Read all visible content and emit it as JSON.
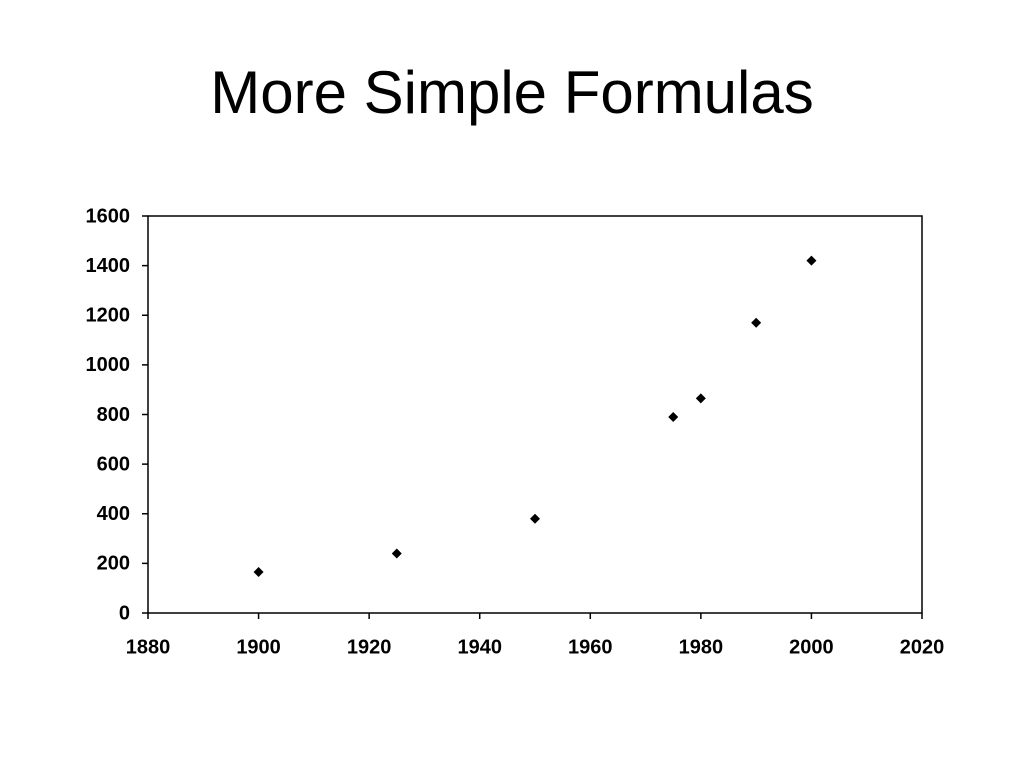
{
  "chart_data": {
    "type": "scatter",
    "title": "More Simple Formulas",
    "x": [
      1900,
      1925,
      1950,
      1975,
      1980,
      1990,
      2000
    ],
    "values": [
      165,
      240,
      380,
      790,
      865,
      1170,
      1420
    ],
    "color": "#000000",
    "xlim": [
      1880,
      2020
    ],
    "xticks": [
      1880,
      1900,
      1920,
      1940,
      1960,
      1980,
      2000,
      2020
    ],
    "ylim": [
      0,
      1600
    ],
    "yticks": [
      0,
      200,
      400,
      600,
      800,
      1000,
      1200,
      1400,
      1600
    ],
    "grid": false
  }
}
